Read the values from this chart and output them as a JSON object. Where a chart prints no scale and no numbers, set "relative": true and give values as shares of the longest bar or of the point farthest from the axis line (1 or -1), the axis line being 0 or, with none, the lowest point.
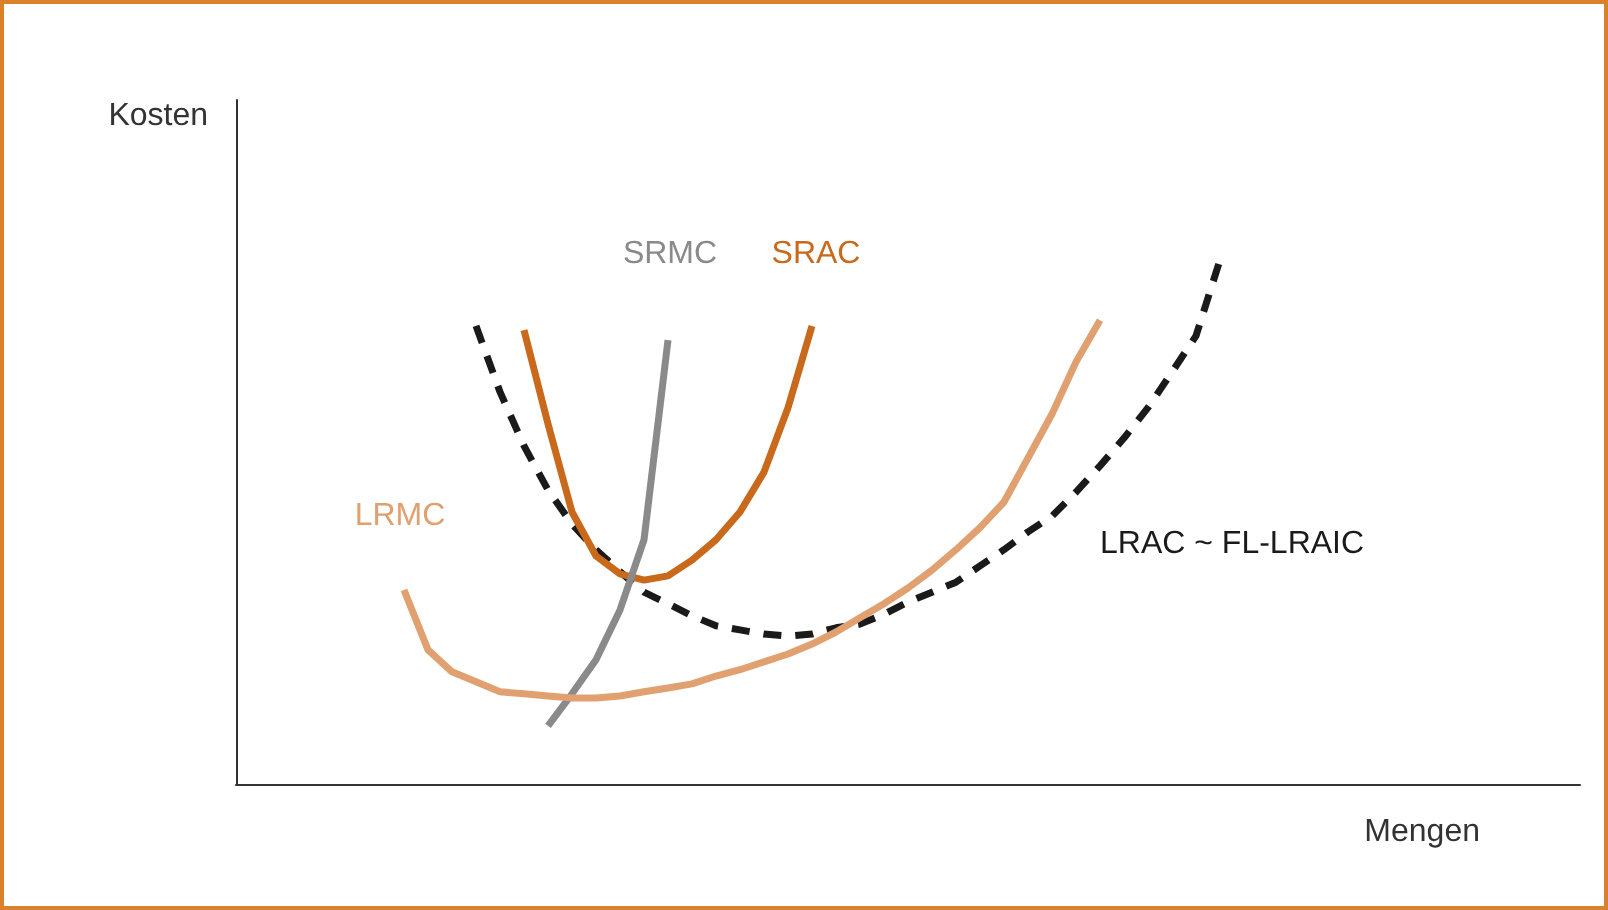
{
  "chart_data": {
    "type": "line",
    "relative": true,
    "xlabel": "Mengen",
    "ylabel": "Kosten",
    "grid": false,
    "legend": false,
    "marker": "none",
    "categories": [
      null,
      null,
      null,
      null,
      null,
      null,
      null,
      null,
      null,
      null,
      null,
      null,
      null,
      null,
      null,
      null,
      null,
      null,
      null,
      null,
      null,
      null,
      null,
      null,
      null,
      null,
      null,
      null,
      null,
      null,
      null,
      null,
      null,
      null,
      null,
      null,
      null,
      null,
      null,
      null,
      null,
      null,
      null,
      null,
      null,
      null,
      null,
      null,
      null,
      null,
      null,
      null,
      null,
      null,
      null,
      null,
      null
    ],
    "series": [
      {
        "name": "LRAC ~ FL-LRAIC",
        "color": "#1a1a1a",
        "line_style": "dashed",
        "values": [
          null,
          null,
          null,
          null,
          null,
          null,
          null,
          null,
          null,
          null,
          0.874,
          0.748,
          0.645,
          0.561,
          0.496,
          0.447,
          0.405,
          0.366,
          0.344,
          0.321,
          0.302,
          0.294,
          0.286,
          0.282,
          0.286,
          0.298,
          0.305,
          0.324,
          0.347,
          0.366,
          0.385,
          0.416,
          0.447,
          0.481,
          0.511,
          0.557,
          0.607,
          0.66,
          0.718,
          0.786,
          0.855,
          1.0,
          null,
          null,
          null,
          null,
          null,
          null,
          null,
          null,
          null,
          null,
          null,
          null,
          null,
          null,
          null
        ]
      },
      {
        "name": "SRAC",
        "color": "#c8691c",
        "line_style": "solid",
        "values": [
          null,
          null,
          null,
          null,
          null,
          null,
          null,
          null,
          null,
          null,
          null,
          null,
          0.866,
          0.687,
          0.519,
          0.435,
          0.401,
          0.389,
          0.397,
          0.427,
          0.466,
          0.519,
          0.595,
          0.718,
          0.874,
          null,
          null,
          null,
          null,
          null,
          null,
          null,
          null,
          null,
          null,
          null,
          null,
          null,
          null,
          null,
          null,
          null,
          null,
          null,
          null,
          null,
          null,
          null,
          null,
          null,
          null,
          null,
          null,
          null,
          null,
          null,
          null
        ]
      },
      {
        "name": "SRMC",
        "color": "#8a8a8a",
        "line_style": "solid",
        "values": [
          null,
          null,
          null,
          null,
          null,
          null,
          null,
          null,
          null,
          null,
          null,
          null,
          null,
          0.111,
          0.172,
          0.237,
          0.332,
          0.466,
          0.847,
          null,
          null,
          null,
          null,
          null,
          null,
          null,
          null,
          null,
          null,
          null,
          null,
          null,
          null,
          null,
          null,
          null,
          null,
          null,
          null,
          null,
          null,
          null,
          null,
          null,
          null,
          null,
          null,
          null,
          null,
          null,
          null,
          null,
          null,
          null,
          null,
          null,
          null
        ]
      },
      {
        "name": "LRMC",
        "color": "#e0a070",
        "line_style": "solid",
        "values": [
          null,
          null,
          null,
          null,
          null,
          null,
          null,
          0.37,
          0.256,
          0.214,
          0.195,
          0.176,
          0.172,
          0.168,
          0.164,
          0.164,
          0.168,
          0.176,
          0.183,
          0.191,
          0.206,
          0.218,
          0.233,
          0.248,
          0.267,
          0.29,
          0.317,
          0.344,
          0.374,
          0.408,
          0.447,
          0.489,
          0.538,
          0.622,
          0.706,
          0.805,
          0.885,
          null,
          null,
          null,
          null,
          null,
          null,
          null,
          null,
          null,
          null,
          null,
          null,
          null,
          null,
          null,
          null,
          null,
          null,
          null,
          null
        ]
      }
    ]
  }
}
